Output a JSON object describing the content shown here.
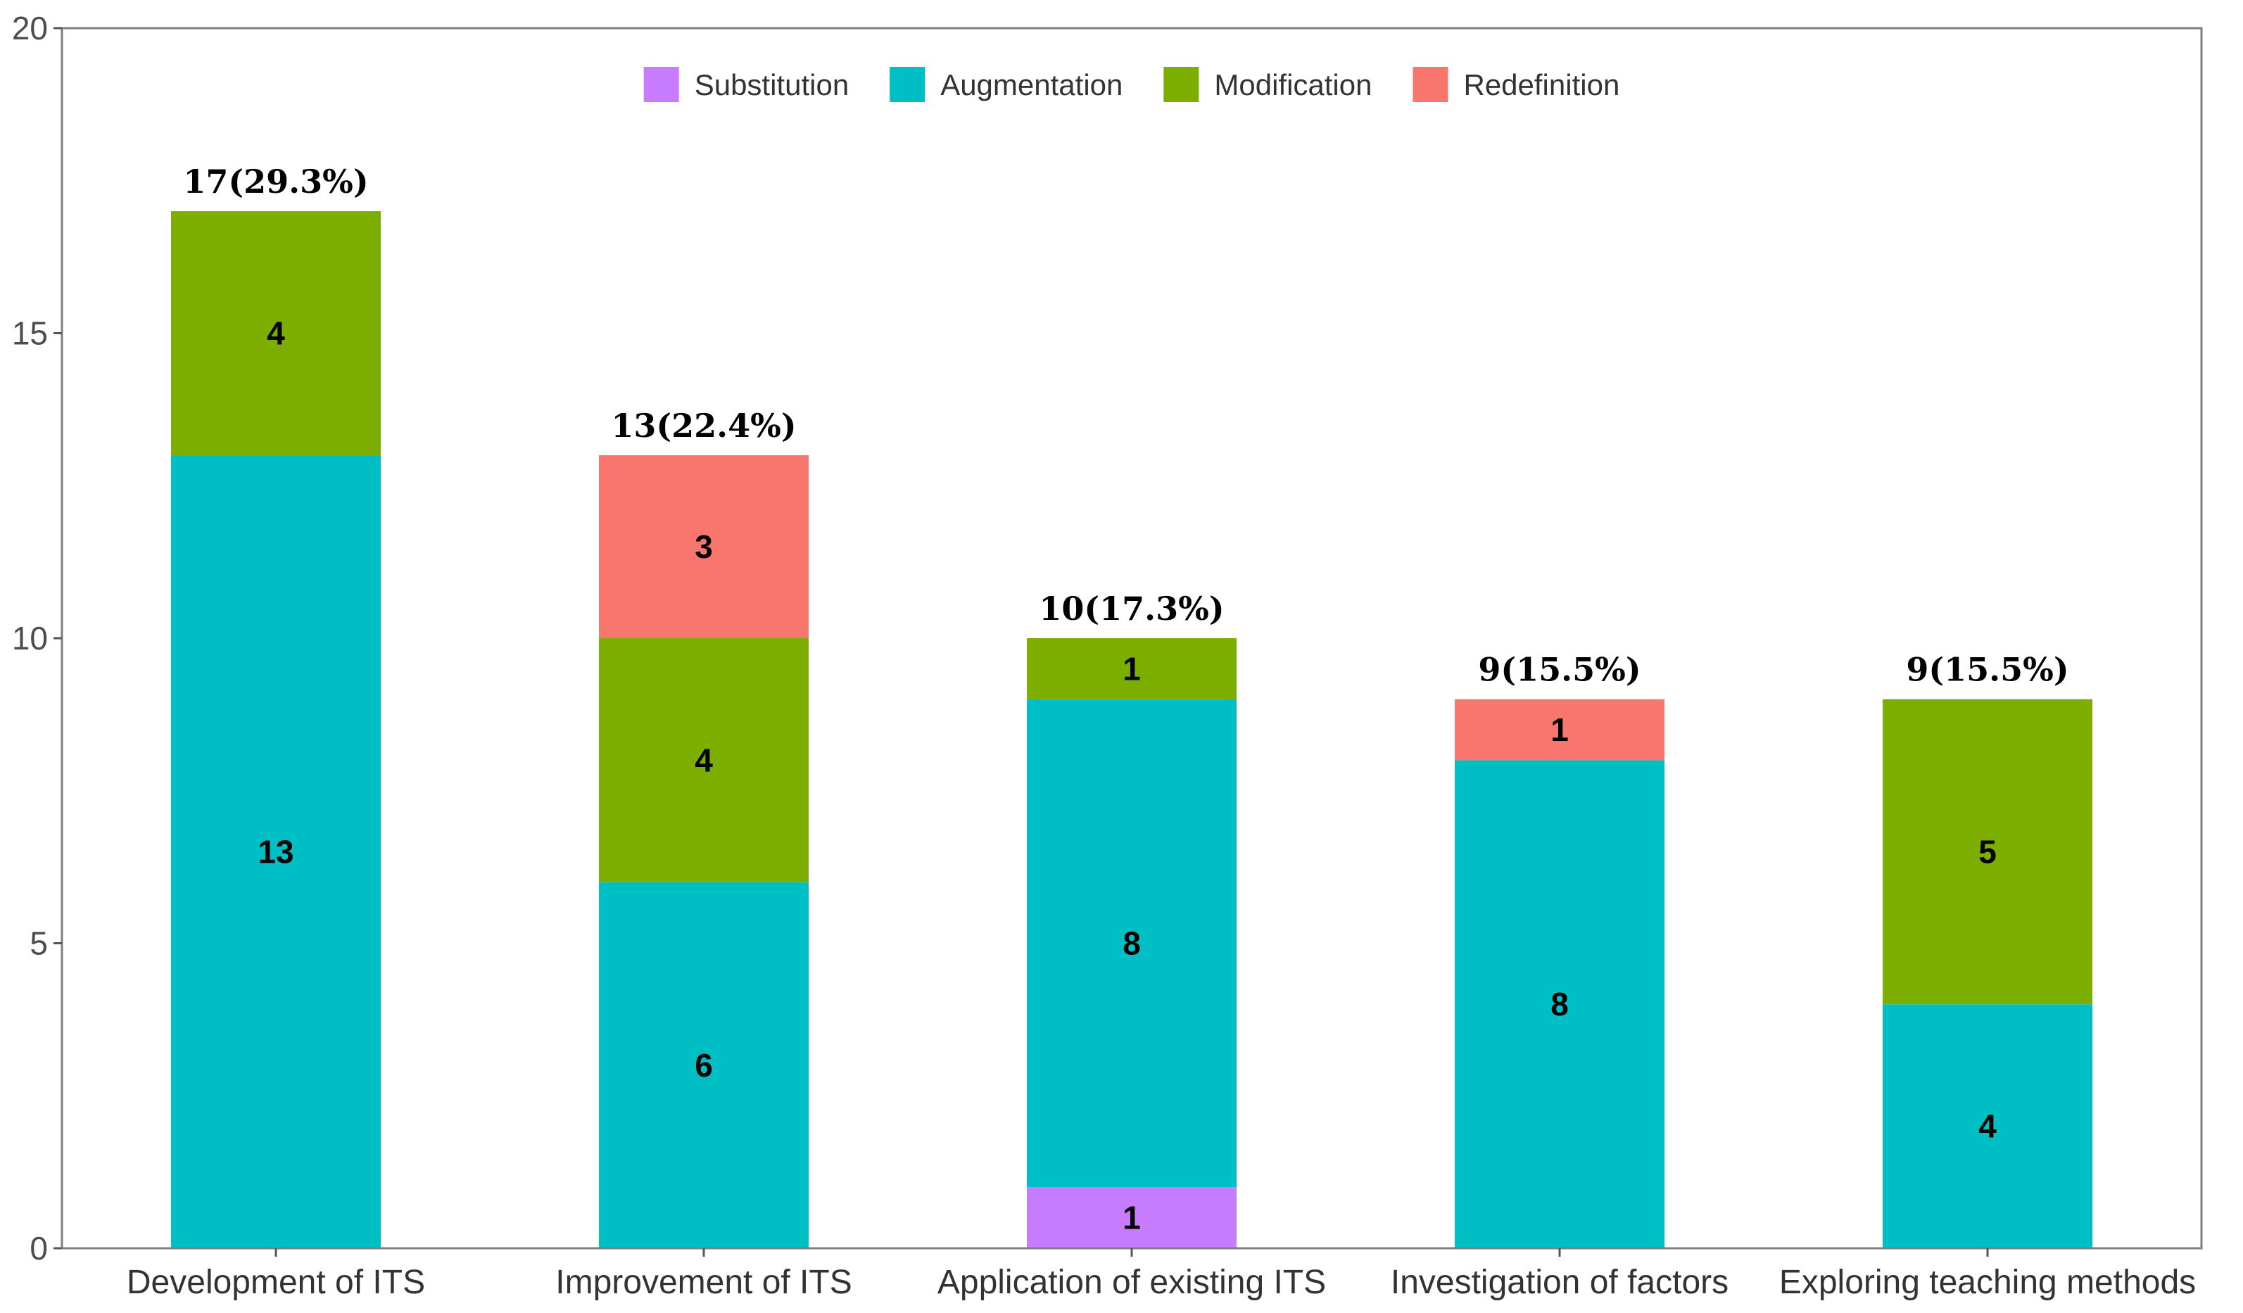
{
  "chart_data": {
    "type": "bar",
    "stacked": true,
    "title": "",
    "xlabel": "",
    "ylabel": "",
    "ylim": [
      0,
      20
    ],
    "yticks": [
      0,
      5,
      10,
      15,
      20
    ],
    "grid": false,
    "legend_position": "top",
    "categories": [
      "Development of ITS",
      "Improvement of ITS",
      "Application of existing ITS",
      "Investigation of factors",
      "Exploring teaching methods"
    ],
    "series": [
      {
        "name": "Substitution",
        "color": "#C77CFF",
        "values": [
          0,
          0,
          1,
          0,
          0
        ]
      },
      {
        "name": "Augmentation",
        "color": "#00BFC4",
        "values": [
          13,
          6,
          8,
          8,
          4
        ]
      },
      {
        "name": "Modification",
        "color": "#7CAE00",
        "values": [
          4,
          4,
          1,
          0,
          5
        ]
      },
      {
        "name": "Redefinition",
        "color": "#F8766D",
        "values": [
          0,
          3,
          0,
          1,
          0
        ]
      }
    ],
    "totals": [
      "17(29.3%)",
      "13(22.4%)",
      "10(17.3%)",
      "9(15.5%)",
      "9(15.5%)"
    ]
  }
}
